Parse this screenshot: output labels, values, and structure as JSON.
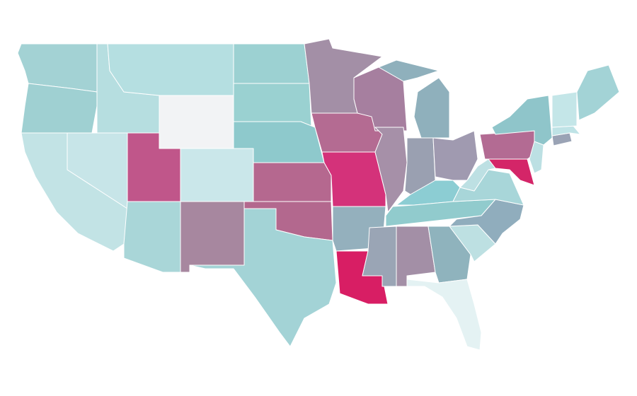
{
  "map": {
    "regions": [
      {
        "color": "#a3d2d4"
      },
      {
        "color": "#9fd0d2"
      },
      {
        "color": "#c2e3e5"
      },
      {
        "color": "#c7e5e8"
      },
      {
        "color": "#b6dee0"
      },
      {
        "color": "#b5dfe1"
      },
      {
        "color": "#f2f3f5"
      },
      {
        "color": "#c0568a"
      },
      {
        "color": "#cae7ea"
      },
      {
        "color": "#a9d6d8"
      },
      {
        "color": "#a7879f"
      },
      {
        "color": "#9cd1d2"
      },
      {
        "color": "#9ad1d1"
      },
      {
        "color": "#8ec9cc"
      },
      {
        "color": "#b5688f"
      },
      {
        "color": "#b3688e"
      },
      {
        "color": "#a3d3d6"
      },
      {
        "color": "#a38fa6"
      },
      {
        "color": "#b46b92"
      },
      {
        "color": "#d4327a"
      },
      {
        "color": "#94b0bd"
      },
      {
        "color": "#d81e64"
      },
      {
        "color": "#a67f9f"
      },
      {
        "color": "#a690a8"
      },
      {
        "color": "#8fb0bc"
      },
      {
        "color": "#9aa0b1"
      },
      {
        "color": "#a09ab0"
      },
      {
        "color": "#8ccdd3"
      },
      {
        "color": "#91cbcd"
      },
      {
        "color": "#9aa5b5"
      },
      {
        "color": "#a38fa6"
      },
      {
        "color": "#8fb3bd"
      },
      {
        "color": "#e4f2f3"
      },
      {
        "color": "#bde0e2"
      },
      {
        "color": "#90adbd"
      },
      {
        "color": "#a8d6d9"
      },
      {
        "color": "#bde0e3"
      },
      {
        "color": "#b36b93"
      },
      {
        "color": "#d42568"
      },
      {
        "color": "#bce0e3"
      },
      {
        "color": "#8fc5ca"
      },
      {
        "color": "#9aa3b5"
      },
      {
        "color": "#bfe3e6"
      },
      {
        "color": "#c4e6e8"
      },
      {
        "color": "#a3d3d6"
      }
    ]
  }
}
